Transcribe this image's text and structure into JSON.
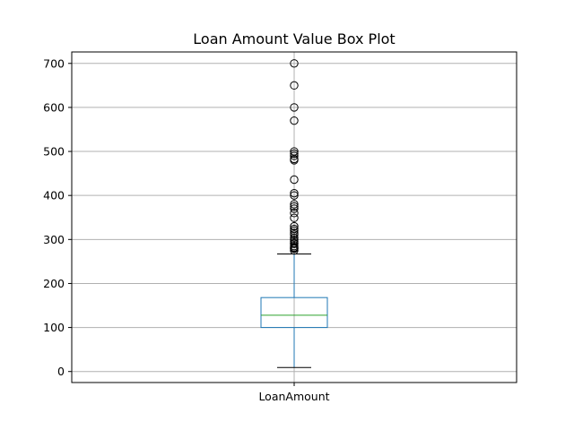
{
  "chart_data": {
    "type": "box",
    "title": "Loan Amount Value Box Plot",
    "categories": [
      "LoanAmount"
    ],
    "ylim": [
      -25,
      726
    ],
    "yticks": [
      0,
      100,
      200,
      300,
      400,
      500,
      600,
      700
    ],
    "grid": true,
    "box": {
      "whisker_low": 9,
      "q1": 100,
      "median": 128,
      "q3": 168,
      "whisker_high": 267
    },
    "outliers": [
      275,
      279,
      280,
      282,
      285,
      290,
      292,
      296,
      300,
      304,
      311,
      315,
      320,
      324,
      330,
      349,
      360,
      370,
      375,
      380,
      400,
      405,
      436,
      480,
      483,
      490,
      495,
      500,
      570,
      600,
      650,
      700
    ],
    "colors": {
      "box": "#1f77b4",
      "median": "#2ca02c",
      "whisker_cap": "#000000",
      "outlier": "#000000",
      "grid": "#b0b0b0"
    }
  }
}
